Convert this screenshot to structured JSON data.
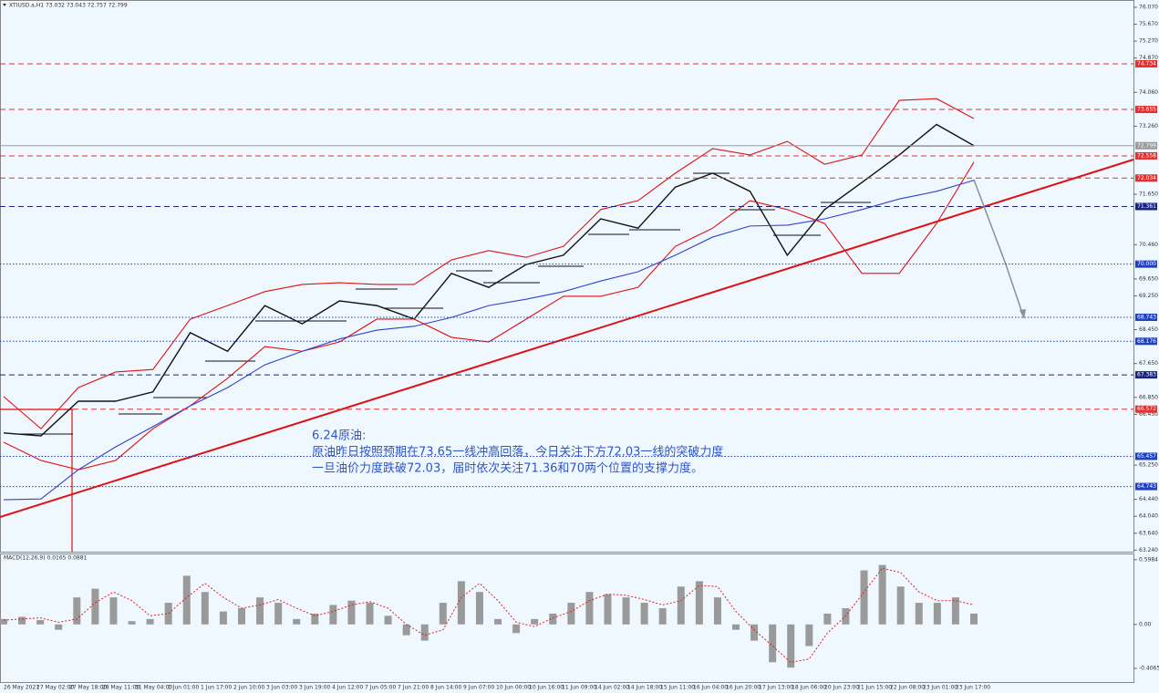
{
  "chart_data": [
    {
      "type": "line",
      "title": "XTIUSD.a,H1  73.032 73.043 72.757 72.799",
      "annotations": [
        "6.24原油:",
        "原油昨日按照预期在73.65一线冲高回落，今日关注下方72.03一线的突破力度",
        "一旦油价力度跌破72.03，届时依次关注71.36和70两个位置的支撑力度。"
      ],
      "ylim": [
        63.204,
        76.242
      ],
      "yticks": [
        {
          "value": 76.07,
          "label": "76.070"
        },
        {
          "value": 75.67,
          "label": "75.670"
        },
        {
          "value": 75.27,
          "label": "75.270"
        },
        {
          "value": 74.87,
          "label": "74.870"
        },
        {
          "value": 74.06,
          "label": "74.060"
        },
        {
          "value": 73.26,
          "label": "73.260"
        },
        {
          "value": 71.65,
          "label": "71.650"
        },
        {
          "value": 70.46,
          "label": "70.460"
        },
        {
          "value": 69.65,
          "label": "69.650"
        },
        {
          "value": 69.25,
          "label": "69.250"
        },
        {
          "value": 68.45,
          "label": "68.450"
        },
        {
          "value": 67.65,
          "label": "67.650"
        },
        {
          "value": 66.85,
          "label": "66.850"
        },
        {
          "value": 66.45,
          "label": "66.450"
        },
        {
          "value": 65.25,
          "label": "65.250"
        },
        {
          "value": 64.44,
          "label": "64.440"
        },
        {
          "value": 64.04,
          "label": "64.040"
        },
        {
          "value": 63.64,
          "label": "63.640"
        },
        {
          "value": 63.24,
          "label": "63.240"
        }
      ],
      "series": [
        {
          "color": "#111111",
          "values": [
            66.01,
            65.94,
            66.76,
            66.76,
            66.98,
            68.38,
            67.94,
            69.02,
            68.59,
            69.13,
            69.02,
            68.7,
            69.78,
            69.45,
            69.99,
            70.21,
            71.07,
            70.85,
            71.82,
            72.15,
            71.72,
            70.21,
            71.29,
            71.93,
            72.58,
            73.3,
            72.8
          ]
        },
        {
          "color": "#e01010",
          "values": [
            66.87,
            66.11,
            67.08,
            67.45,
            67.51,
            68.7,
            69.02,
            69.35,
            69.52,
            69.56,
            69.52,
            69.52,
            70.1,
            70.32,
            70.16,
            70.42,
            71.29,
            71.5,
            72.15,
            72.73,
            72.58,
            72.9,
            72.36,
            72.58,
            73.87,
            73.91,
            73.44
          ]
        },
        {
          "color": "#e01010",
          "values": [
            65.79,
            65.36,
            65.14,
            65.36,
            66.11,
            66.65,
            67.3,
            68.05,
            67.94,
            68.16,
            68.7,
            68.7,
            68.27,
            68.16,
            68.7,
            69.24,
            69.24,
            69.45,
            70.42,
            70.85,
            71.5,
            71.29,
            70.96,
            69.78,
            69.78,
            70.96,
            72.41
          ]
        },
        {
          "color": "#3040d0",
          "values": [
            64.43,
            64.45,
            65.14,
            65.68,
            66.16,
            66.65,
            67.08,
            67.62,
            67.94,
            68.23,
            68.44,
            68.53,
            68.74,
            69.02,
            69.17,
            69.35,
            69.6,
            69.82,
            70.21,
            70.64,
            70.9,
            70.92,
            71.07,
            71.29,
            71.54,
            71.72,
            71.98
          ]
        }
      ],
      "levels": {
        "values": [
          74.734,
          73.655,
          72.799,
          72.558,
          72.034,
          71.361,
          70.0,
          68.743,
          68.176,
          67.383,
          66.572,
          65.457,
          64.743
        ],
        "value_labels": [
          "74.734",
          "73.655",
          "72.799",
          "72.558",
          "72.034",
          "71.361",
          "70.000",
          "68.743",
          "68.176",
          "67.383",
          "66.572",
          "65.457",
          "64.743"
        ],
        "colors": [
          "#e23030",
          "#e23030",
          "#9a9a9a",
          "#e23030",
          "#e23030",
          "#1a237e",
          "#2040c0",
          "#2040c0",
          "#2040c0",
          "#1a237e",
          "#e23030",
          "#2040c0",
          "#2040c0"
        ],
        "styles": [
          "dashed",
          "dashed",
          "solid",
          "dashed",
          "dashed",
          "dashed",
          "dotted",
          "dotted",
          "dotted",
          "dashed",
          "dashed",
          "dotted",
          "dotted"
        ]
      }
    },
    {
      "type": "bar",
      "title": "MACD(12,26,9) 0.0165 0.0881",
      "ylim": [
        -0.533,
        0.656
      ],
      "yticks": [
        0.5984,
        {
          "value": 0,
          "label": "0.00"
        },
        -0.4065
      ],
      "xticks": [
        "26 May 2021",
        "27 May 02:00",
        "27 May 18:00",
        "28 May 11:00",
        "31 May 04:00",
        "1 Jun 01:00",
        "1 Jun 17:00",
        "2 Jun 10:00",
        "3 Jun 03:00",
        "3 Jun 19:00",
        "4 Jun 12:00",
        "7 Jun 05:00",
        "7 Jun 21:00",
        "8 Jun 14:00",
        "9 Jun 07:00",
        "10 Jun 00:00",
        "10 Jun 16:00",
        "11 Jun 09:00",
        "14 Jun 02:00",
        "14 Jun 18:00",
        "15 Jun 11:00",
        "16 Jun 04:00",
        "16 Jun 20:00",
        "17 Jun 13:00",
        "18 Jun 06:00",
        "20 Jun 23:00",
        "21 Jun 15:00",
        "22 Jun 08:00",
        "23 Jun 01:00",
        "23 Jun 17:00"
      ],
      "series": [
        {
          "color": "#9a9a9a",
          "values": [
            0.05,
            0.07,
            0.04,
            -0.05,
            0.25,
            0.33,
            0.25,
            0.03,
            0.05,
            0.2,
            0.45,
            0.3,
            0.12,
            0.15,
            0.25,
            0.2,
            0.05,
            0.1,
            0.18,
            0.22,
            0.2,
            0.08,
            -0.1,
            -0.15,
            0.2,
            0.4,
            0.3,
            0.05,
            -0.08,
            0.05,
            0.1,
            0.2,
            0.3,
            0.28,
            0.25,
            0.2,
            0.15,
            0.35,
            0.4,
            0.25,
            -0.05,
            -0.15,
            -0.35,
            -0.4,
            -0.2,
            0.1,
            0.15,
            0.5,
            0.55,
            0.35,
            0.2,
            0.2,
            0.25,
            0.1
          ]
        },
        {
          "color": "#e02020",
          "values": [
            0.04,
            0.05,
            0.06,
            0.02,
            0.05,
            0.2,
            0.3,
            0.22,
            0.08,
            0.1,
            0.25,
            0.38,
            0.25,
            0.15,
            0.18,
            0.23,
            0.15,
            0.08,
            0.12,
            0.18,
            0.21,
            0.15,
            0.0,
            -0.1,
            -0.05,
            0.25,
            0.38,
            0.22,
            0.02,
            -0.02,
            0.06,
            0.12,
            0.22,
            0.28,
            0.27,
            0.23,
            0.18,
            0.22,
            0.36,
            0.35,
            0.12,
            -0.05,
            -0.2,
            -0.35,
            -0.32,
            -0.08,
            0.08,
            0.3,
            0.52,
            0.48,
            0.3,
            0.22,
            0.22,
            0.18
          ]
        }
      ]
    }
  ]
}
